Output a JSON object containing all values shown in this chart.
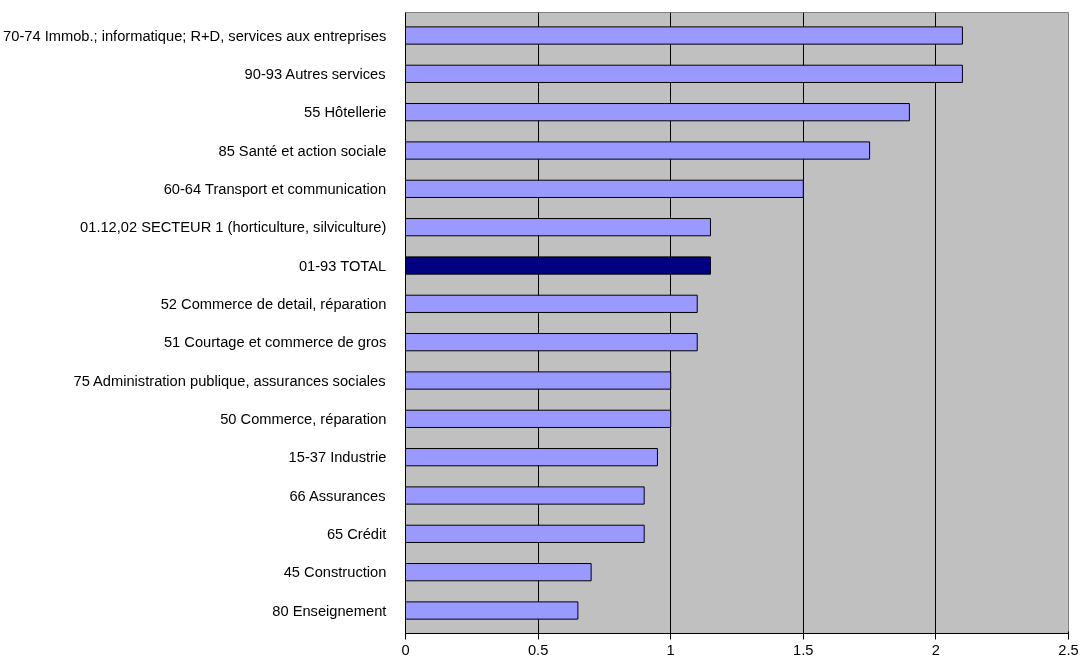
{
  "chart_data": {
    "type": "bar",
    "orientation": "horizontal",
    "categories": [
      "70-74   Immob.; informatique; R+D, services aux entreprises",
      "90-93   Autres services",
      "55   Hôtellerie",
      "85   Santé et action sociale",
      "60-64   Transport et communication",
      "01.12,02   SECTEUR 1 (horticulture, silviculture)",
      "01-93   TOTAL",
      "52   Commerce de detail, réparation",
      "51   Courtage et commerce de gros",
      "75   Administration publique, assurances sociales",
      "50   Commerce, réparation",
      "15-37   Industrie",
      "66   Assurances",
      "65   Crédit",
      "45   Construction",
      "80   Enseignement"
    ],
    "values": [
      2.1,
      2.1,
      1.9,
      1.75,
      1.5,
      1.15,
      1.15,
      1.1,
      1.1,
      1.0,
      1.0,
      0.95,
      0.9,
      0.9,
      0.7,
      0.65
    ],
    "colors": [
      "#9999ff",
      "#9999ff",
      "#9999ff",
      "#9999ff",
      "#9999ff",
      "#9999ff",
      "#000080",
      "#9999ff",
      "#9999ff",
      "#9999ff",
      "#9999ff",
      "#9999ff",
      "#9999ff",
      "#9999ff",
      "#9999ff",
      "#9999ff"
    ],
    "xlim": [
      0,
      2.5
    ],
    "xticks": [
      0,
      0.5,
      1,
      1.5,
      2,
      2.5
    ],
    "grid": "x"
  }
}
